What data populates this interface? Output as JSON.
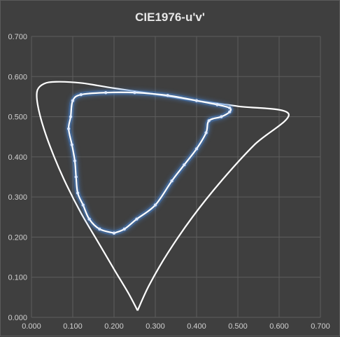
{
  "chart_data": {
    "type": "scatter",
    "title": "CIE1976-u'v'",
    "xlabel": "",
    "ylabel": "",
    "xlim": [
      0,
      0.7
    ],
    "ylim": [
      0,
      0.7
    ],
    "grid": true,
    "x_ticks": [
      "0.000",
      "0.100",
      "0.200",
      "0.300",
      "0.400",
      "0.500",
      "0.600",
      "0.700"
    ],
    "y_ticks": [
      "0.000",
      "0.100",
      "0.200",
      "0.300",
      "0.400",
      "0.500",
      "0.600",
      "0.700"
    ],
    "colors": {
      "background": "#404040",
      "grid": "#5e5e5e",
      "locus": "#ffffff",
      "gamut": "#ffffff",
      "glow": "#4a86d6"
    },
    "series": [
      {
        "type": "line",
        "points": [
          [
            0.257,
            0.017
          ],
          [
            0.235,
            0.06
          ],
          [
            0.2,
            0.12
          ],
          [
            0.16,
            0.19
          ],
          [
            0.12,
            0.26
          ],
          [
            0.085,
            0.33
          ],
          [
            0.055,
            0.4
          ],
          [
            0.03,
            0.47
          ],
          [
            0.015,
            0.53
          ],
          [
            0.014,
            0.565
          ],
          [
            0.03,
            0.582
          ],
          [
            0.06,
            0.587
          ],
          [
            0.12,
            0.584
          ],
          [
            0.2,
            0.571
          ],
          [
            0.3,
            0.556
          ],
          [
            0.4,
            0.54
          ],
          [
            0.5,
            0.526
          ],
          [
            0.623,
            0.507
          ],
          [
            0.54,
            0.43
          ],
          [
            0.46,
            0.34
          ],
          [
            0.39,
            0.25
          ],
          [
            0.33,
            0.16
          ],
          [
            0.285,
            0.08
          ],
          [
            0.257,
            0.017
          ]
        ]
      },
      {
        "type": "line",
        "points": [
          [
            0.2,
            0.21
          ],
          [
            0.225,
            0.22
          ],
          [
            0.255,
            0.245
          ],
          [
            0.3,
            0.28
          ],
          [
            0.34,
            0.34
          ],
          [
            0.37,
            0.38
          ],
          [
            0.4,
            0.42
          ],
          [
            0.423,
            0.46
          ],
          [
            0.43,
            0.49
          ],
          [
            0.46,
            0.5
          ],
          [
            0.48,
            0.512
          ],
          [
            0.48,
            0.522
          ],
          [
            0.45,
            0.53
          ],
          [
            0.4,
            0.54
          ],
          [
            0.33,
            0.553
          ],
          [
            0.25,
            0.56
          ],
          [
            0.18,
            0.56
          ],
          [
            0.12,
            0.555
          ],
          [
            0.1,
            0.54
          ],
          [
            0.095,
            0.5
          ],
          [
            0.09,
            0.47
          ],
          [
            0.098,
            0.43
          ],
          [
            0.105,
            0.39
          ],
          [
            0.108,
            0.35
          ],
          [
            0.112,
            0.31
          ],
          [
            0.125,
            0.28
          ],
          [
            0.14,
            0.245
          ],
          [
            0.165,
            0.22
          ],
          [
            0.2,
            0.21
          ]
        ]
      }
    ]
  }
}
